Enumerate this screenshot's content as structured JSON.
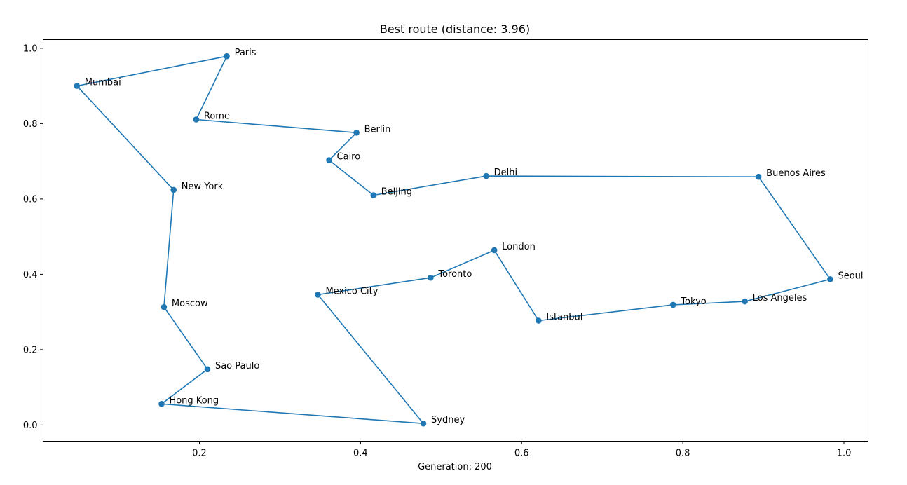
{
  "chart_data": {
    "type": "line",
    "title": "Best route (distance: 3.96)",
    "xlabel": "Generation: 200",
    "ylabel": "",
    "xlim": [
      0.006,
      1.03
    ],
    "ylim": [
      -0.043,
      1.023
    ],
    "x_ticks": [
      0.2,
      0.4,
      0.6,
      0.8,
      1.0
    ],
    "x_tick_labels": [
      "0.2",
      "0.4",
      "0.6",
      "0.8",
      "1.0"
    ],
    "y_ticks": [
      0.0,
      0.2,
      0.4,
      0.6,
      0.8,
      1.0
    ],
    "y_tick_labels": [
      "0.0",
      "0.2",
      "0.4",
      "0.6",
      "0.8",
      "1.0"
    ],
    "grid": false,
    "line_color": "#1f77b4",
    "route": [
      {
        "name": "Paris",
        "x": 0.234,
        "y": 0.979
      },
      {
        "name": "Rome",
        "x": 0.196,
        "y": 0.811
      },
      {
        "name": "Berlin",
        "x": 0.395,
        "y": 0.776
      },
      {
        "name": "Cairo",
        "x": 0.361,
        "y": 0.703
      },
      {
        "name": "Beijing",
        "x": 0.416,
        "y": 0.61
      },
      {
        "name": "Delhi",
        "x": 0.556,
        "y": 0.661
      },
      {
        "name": "Buenos Aires",
        "x": 0.894,
        "y": 0.659
      },
      {
        "name": "Seoul",
        "x": 0.983,
        "y": 0.387
      },
      {
        "name": "Los Angeles",
        "x": 0.877,
        "y": 0.328
      },
      {
        "name": "Tokyo",
        "x": 0.788,
        "y": 0.319
      },
      {
        "name": "Istanbul",
        "x": 0.621,
        "y": 0.277
      },
      {
        "name": "London",
        "x": 0.566,
        "y": 0.464
      },
      {
        "name": "Toronto",
        "x": 0.487,
        "y": 0.391
      },
      {
        "name": "Mexico City",
        "x": 0.347,
        "y": 0.346
      },
      {
        "name": "Sydney",
        "x": 0.478,
        "y": 0.004
      },
      {
        "name": "Hong Kong",
        "x": 0.153,
        "y": 0.056
      },
      {
        "name": "Sao Paulo",
        "x": 0.21,
        "y": 0.148
      },
      {
        "name": "Moscow",
        "x": 0.156,
        "y": 0.313
      },
      {
        "name": "New York",
        "x": 0.168,
        "y": 0.624
      },
      {
        "name": "Mumbai",
        "x": 0.048,
        "y": 0.9
      }
    ]
  }
}
